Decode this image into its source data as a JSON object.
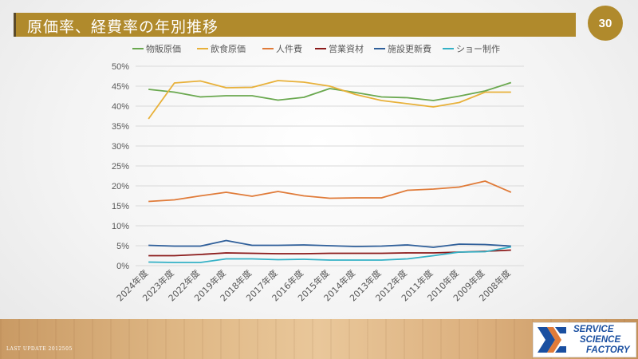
{
  "slide": {
    "title": "原価率、経費率の年別推移",
    "page_number": "30",
    "last_update": "LAST UPDATE 2012505"
  },
  "logo": {
    "lines": [
      "SERVICE",
      "SCIENCE",
      "FACTORY"
    ],
    "color": "#1a4fa0"
  },
  "colors": {
    "title_bar": "#b08a2c",
    "badge": "#b08a2c"
  },
  "chart_data": {
    "type": "line",
    "title": "",
    "xlabel": "",
    "ylabel": "",
    "categories": [
      "2024年度",
      "2023年度",
      "2022年度",
      "2019年度",
      "2018年度",
      "2017年度",
      "2016年度",
      "2015年度",
      "2014年度",
      "2013年度",
      "2012年度",
      "2011年度",
      "2010年度",
      "2009年度",
      "2008年度"
    ],
    "ylim": [
      0,
      50
    ],
    "yticks": [
      "0%",
      "5%",
      "10%",
      "15%",
      "20%",
      "25%",
      "30%",
      "35%",
      "40%",
      "45%",
      "50%"
    ],
    "grid": true,
    "legend": "top",
    "series": [
      {
        "name": "物販原価",
        "color": "#6aa84f",
        "values": [
          44.2,
          43.5,
          42.3,
          42.6,
          42.6,
          41.5,
          42.2,
          44.4,
          43.4,
          42.3,
          42.1,
          41.4,
          42.5,
          43.8,
          45.9
        ]
      },
      {
        "name": "飲食原価",
        "color": "#e8b13a",
        "values": [
          36.8,
          45.8,
          46.3,
          44.6,
          44.7,
          46.4,
          46.0,
          45.0,
          42.9,
          41.4,
          40.6,
          39.8,
          40.9,
          43.5,
          43.5
        ]
      },
      {
        "name": "人件費",
        "color": "#e07b39",
        "values": [
          16.1,
          16.5,
          17.5,
          18.4,
          17.4,
          18.6,
          17.5,
          16.9,
          17.0,
          17.0,
          18.9,
          19.2,
          19.7,
          21.2,
          18.4
        ]
      },
      {
        "name": "営業資材",
        "color": "#8b1a1a",
        "values": [
          2.5,
          2.5,
          2.8,
          3.2,
          3.1,
          3.0,
          3.0,
          3.1,
          3.1,
          3.1,
          3.2,
          3.2,
          3.4,
          3.6,
          3.9
        ]
      },
      {
        "name": "施設更新費",
        "color": "#2f5f9a",
        "values": [
          5.1,
          4.9,
          4.9,
          6.3,
          5.1,
          5.1,
          5.2,
          5.0,
          4.8,
          4.9,
          5.2,
          4.6,
          5.4,
          5.3,
          4.9
        ]
      },
      {
        "name": "ショー制作",
        "color": "#34b1c6",
        "values": [
          0.9,
          0.8,
          0.8,
          1.7,
          1.7,
          1.5,
          1.6,
          1.4,
          1.4,
          1.4,
          1.7,
          2.5,
          3.4,
          3.5,
          4.7
        ]
      }
    ]
  }
}
